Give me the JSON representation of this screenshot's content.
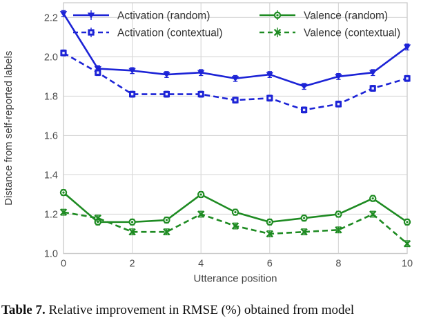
{
  "figure": {
    "caption_bold": "Table 7.",
    "caption_rest": " Relative improvement in RMSE (%) obtained from model"
  },
  "chart_data": {
    "type": "line",
    "title": "",
    "xlabel": "Utterance position",
    "ylabel": "Distance from self-reported labels",
    "x": [
      0,
      1,
      2,
      3,
      4,
      5,
      6,
      7,
      8,
      9,
      10
    ],
    "xticks": [
      0,
      2,
      4,
      6,
      8,
      10
    ],
    "yticks": [
      1.0,
      1.2,
      1.4,
      1.6,
      1.8,
      2.0,
      2.2
    ],
    "xlim": [
      0,
      10
    ],
    "ylim": [
      1.0,
      2.275
    ],
    "grid": true,
    "error_bar": 0.015,
    "legend": {
      "position": "upper-inside",
      "columns": 2
    },
    "colors": {
      "activation": "#1c23d6",
      "valence": "#1e8b22",
      "grid": "#d9d9d9",
      "spine": "#cccccc",
      "tick_text": "#4d4d4d",
      "axis_text": "#3c3c3c",
      "legend_text": "#333333"
    },
    "series": [
      {
        "name": "Activation (random)",
        "color": "#1c23d6",
        "line": "solid",
        "marker": "triangle-down",
        "values": [
          2.22,
          1.94,
          1.93,
          1.91,
          1.92,
          1.89,
          1.91,
          1.85,
          1.9,
          1.92,
          2.05
        ]
      },
      {
        "name": "Activation (contextual)",
        "color": "#1c23d6",
        "line": "dashed",
        "marker": "square",
        "values": [
          2.02,
          1.92,
          1.81,
          1.81,
          1.81,
          1.78,
          1.79,
          1.73,
          1.76,
          1.84,
          1.89
        ]
      },
      {
        "name": "Valence (random)",
        "color": "#1e8b22",
        "line": "solid",
        "marker": "circle",
        "values": [
          1.31,
          1.16,
          1.16,
          1.17,
          1.3,
          1.21,
          1.16,
          1.18,
          1.2,
          1.28,
          1.16
        ]
      },
      {
        "name": "Valence (contextual)",
        "color": "#1e8b22",
        "line": "dashed",
        "marker": "x",
        "values": [
          1.21,
          1.18,
          1.11,
          1.11,
          1.2,
          1.14,
          1.1,
          1.11,
          1.12,
          1.2,
          1.05
        ]
      }
    ]
  }
}
